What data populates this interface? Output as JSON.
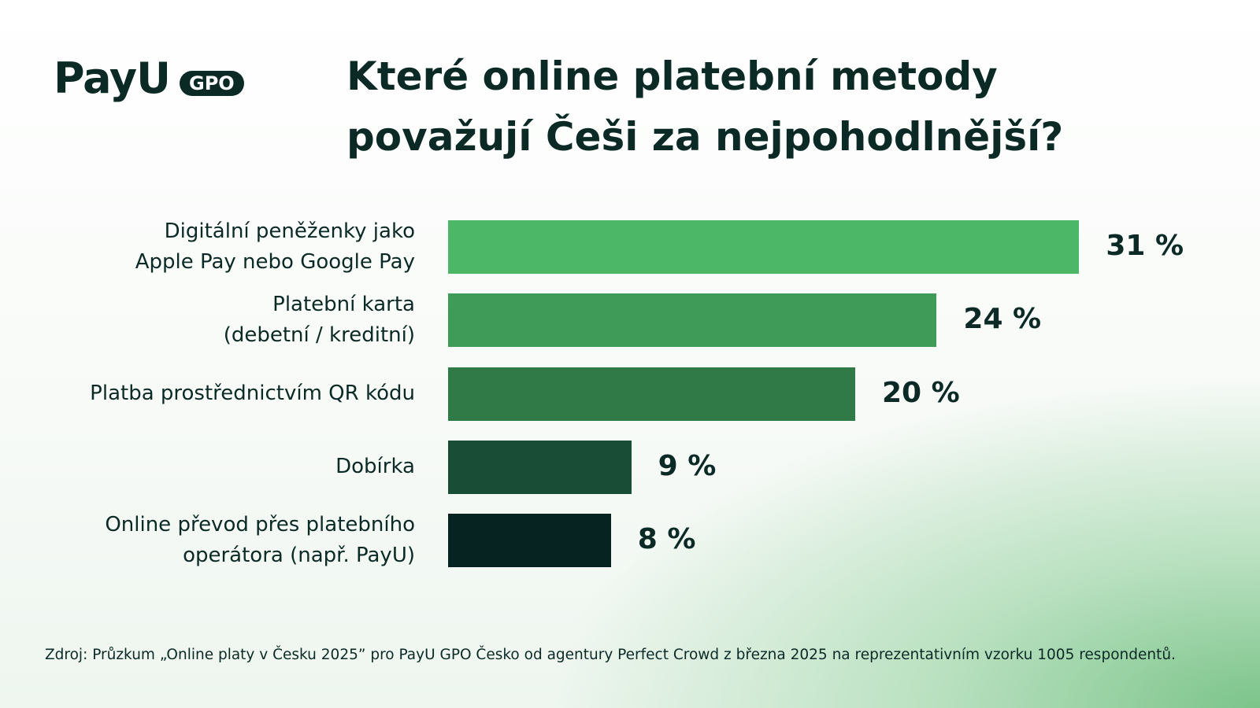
{
  "logo": {
    "name": "PayU",
    "badge": "GPO"
  },
  "chart_data": {
    "type": "bar",
    "orientation": "horizontal",
    "title": [
      "Které online platební metody",
      "považují Češi za nejpohodlnější?"
    ],
    "categories": [
      "Digitální peněženky jako\nApple Pay nebo Google Pay",
      "Platební karta\n(debetní / kreditní)",
      "Platba prostřednictvím QR kódu",
      "Dobírka",
      "Online převod přes platebního\noperátora (např. PayU)"
    ],
    "values": [
      31,
      24,
      20,
      9,
      8
    ],
    "value_labels": [
      "31 %",
      "24 %",
      "20 %",
      "9 %",
      "8 %"
    ],
    "colors": [
      "#4db768",
      "#3f9c58",
      "#2f7a47",
      "#1a4d36",
      "#062321"
    ],
    "source": "Zdroj: Průzkum „Online platy v Česku 2025” pro PayU GPO Česko od agentury Perfect Crowd z března 2025 na reprezentativním vzorku 1005 respondentů."
  }
}
